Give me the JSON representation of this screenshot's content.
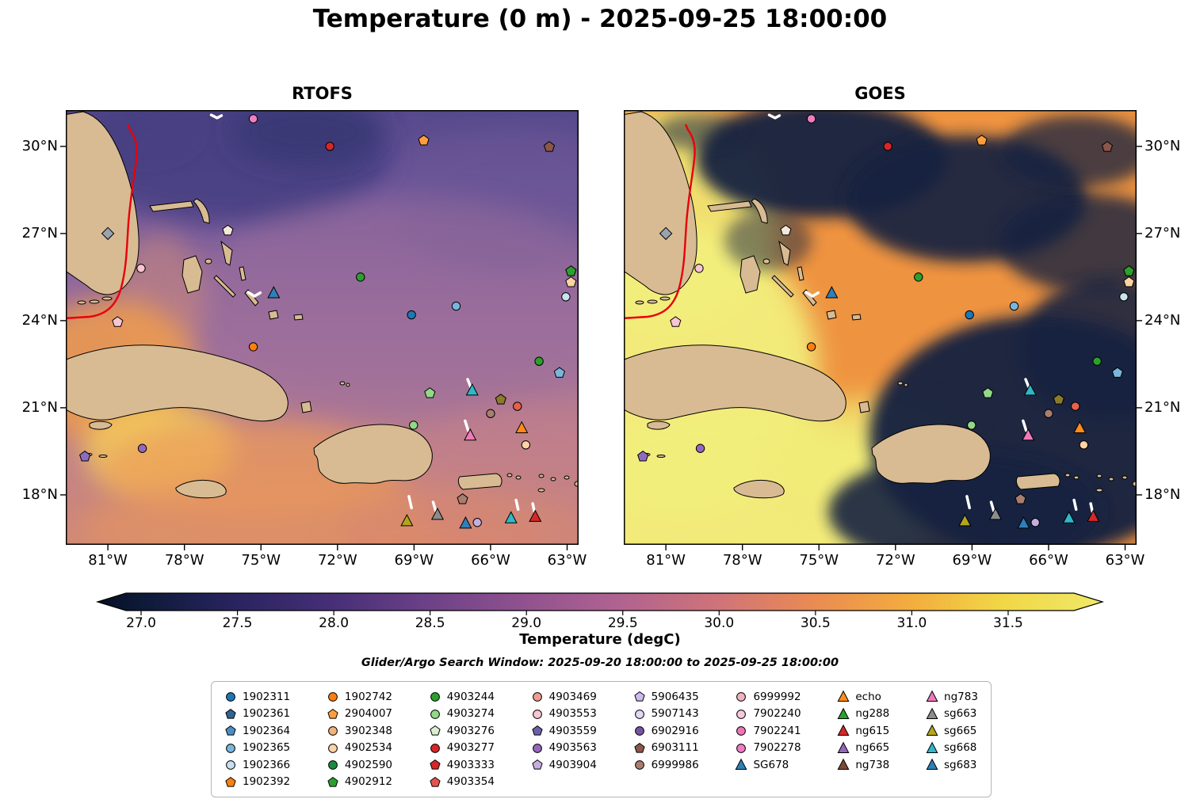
{
  "title": "Temperature (0 m) - 2025-09-25 18:00:00",
  "subtitle": "Glider/Argo Search Window: 2025-09-20 18:00:00 to 2025-09-25 18:00:00",
  "panels": [
    {
      "name": "RTOFS"
    },
    {
      "name": "GOES"
    }
  ],
  "axes": {
    "lon_ticks": [
      {
        "label": "81°W",
        "value": -81
      },
      {
        "label": "78°W",
        "value": -78
      },
      {
        "label": "75°W",
        "value": -75
      },
      {
        "label": "72°W",
        "value": -72
      },
      {
        "label": "69°W",
        "value": -69
      },
      {
        "label": "66°W",
        "value": -66
      },
      {
        "label": "63°W",
        "value": -63
      }
    ],
    "lat_ticks": [
      {
        "label": "30°N",
        "value": 30
      },
      {
        "label": "27°N",
        "value": 27
      },
      {
        "label": "24°N",
        "value": 24
      },
      {
        "label": "21°N",
        "value": 21
      },
      {
        "label": "18°N",
        "value": 18
      }
    ]
  },
  "colorbar": {
    "label": "Temperature (degC)",
    "ticks": [
      {
        "label": "27.0",
        "value": 27.0
      },
      {
        "label": "27.5",
        "value": 27.5
      },
      {
        "label": "28.0",
        "value": 28.0
      },
      {
        "label": "28.5",
        "value": 28.5
      },
      {
        "label": "29.0",
        "value": 29.0
      },
      {
        "label": "29.5",
        "value": 29.5
      },
      {
        "label": "30.0",
        "value": 30.0
      },
      {
        "label": "30.5",
        "value": 30.5
      },
      {
        "label": "31.0",
        "value": 31.0
      },
      {
        "label": "31.5",
        "value": 31.5
      }
    ],
    "stops": [
      [
        "0",
        "#060e24"
      ],
      [
        "0.044",
        "#0d1a38"
      ],
      [
        "0.14",
        "#2a2460"
      ],
      [
        "0.235",
        "#472f78"
      ],
      [
        "0.33",
        "#6d4187"
      ],
      [
        "0.43",
        "#92538f"
      ],
      [
        "0.52",
        "#b16390"
      ],
      [
        "0.62",
        "#cf7478"
      ],
      [
        "0.71",
        "#e98a54"
      ],
      [
        "0.81",
        "#f3ad3e"
      ],
      [
        "0.9",
        "#f1d747"
      ],
      [
        "1",
        "#f0e968"
      ]
    ]
  },
  "colors": {
    "land": "#d8bb93",
    "coast": "#000000",
    "contour": "#e8000b",
    "track": "#ffffff",
    "cloud_dark": "#15233f"
  },
  "legend": {
    "columns": [
      [
        {
          "label": "1902311",
          "shape": "circle",
          "color": "#1f77b4"
        },
        {
          "label": "1902361",
          "shape": "pentagon",
          "color": "#31648f"
        },
        {
          "label": "1902364",
          "shape": "pentagon",
          "color": "#4b8ec7"
        },
        {
          "label": "1902365",
          "shape": "circle",
          "color": "#79b6dd"
        },
        {
          "label": "1902366",
          "shape": "circle",
          "color": "#c8dff0"
        },
        {
          "label": "1902392",
          "shape": "pentagon",
          "color": "#ff7f0e"
        }
      ],
      [
        {
          "label": "1902742",
          "shape": "circle",
          "color": "#ff7f0e"
        },
        {
          "label": "2904007",
          "shape": "pentagon",
          "color": "#ff9e3d"
        },
        {
          "label": "3902348",
          "shape": "circle",
          "color": "#f2b279"
        },
        {
          "label": "4902534",
          "shape": "circle",
          "color": "#fbd3a4"
        },
        {
          "label": "4902590",
          "shape": "circle",
          "color": "#1e8a3e"
        },
        {
          "label": "4902912",
          "shape": "pentagon",
          "color": "#2ca02c"
        }
      ],
      [
        {
          "label": "4903244",
          "shape": "circle",
          "color": "#2ca02c"
        },
        {
          "label": "4903274",
          "shape": "circle",
          "color": "#93d788"
        },
        {
          "label": "4903276",
          "shape": "pentagon",
          "color": "#d9efce"
        },
        {
          "label": "4903277",
          "shape": "circle",
          "color": "#d62728"
        },
        {
          "label": "4903333",
          "shape": "pentagon",
          "color": "#d62728"
        },
        {
          "label": "4903354",
          "shape": "pentagon",
          "color": "#e4544e"
        }
      ],
      [
        {
          "label": "4903469",
          "shape": "circle",
          "color": "#f09b93"
        },
        {
          "label": "4903553",
          "shape": "circle",
          "color": "#f7c6d2"
        },
        {
          "label": "4903559",
          "shape": "pentagon",
          "color": "#6f5fa8"
        },
        {
          "label": "4903563",
          "shape": "circle",
          "color": "#9467bd"
        },
        {
          "label": "4903904",
          "shape": "pentagon",
          "color": "#c5aede"
        }
      ],
      [
        {
          "label": "5906435",
          "shape": "pentagon",
          "color": "#cdbaec"
        },
        {
          "label": "5907143",
          "shape": "circle",
          "color": "#e4d7f5"
        },
        {
          "label": "6902916",
          "shape": "circle",
          "color": "#7a52a3"
        },
        {
          "label": "6903111",
          "shape": "pentagon",
          "color": "#8c564b"
        },
        {
          "label": "6999986",
          "shape": "circle",
          "color": "#a97e6f"
        }
      ],
      [
        {
          "label": "6999992",
          "shape": "circle",
          "color": "#efb3c0"
        },
        {
          "label": "7902240",
          "shape": "circle",
          "color": "#f8c8dd"
        },
        {
          "label": "7902241",
          "shape": "circle",
          "color": "#f075b8"
        },
        {
          "label": "7902278",
          "shape": "circle",
          "color": "#ee7ec2"
        },
        {
          "label": "SG678",
          "shape": "triangle",
          "color": "#2f7fb8"
        }
      ],
      [
        {
          "label": "echo",
          "shape": "triangle",
          "color": "#ff8c1a"
        },
        {
          "label": "ng288",
          "shape": "triangle",
          "color": "#2ca02c"
        },
        {
          "label": "ng615",
          "shape": "triangle",
          "color": "#d62728"
        },
        {
          "label": "ng665",
          "shape": "triangle",
          "color": "#9467bd"
        },
        {
          "label": "ng738",
          "shape": "triangle",
          "color": "#7a4a37"
        }
      ],
      [
        {
          "label": "ng783",
          "shape": "triangle",
          "color": "#ef7ab8"
        },
        {
          "label": "sg663",
          "shape": "triangle",
          "color": "#8c8c8c"
        },
        {
          "label": "sg665",
          "shape": "triangle",
          "color": "#b3a61c"
        },
        {
          "label": "sg668",
          "shape": "triangle",
          "color": "#2fb8c9"
        },
        {
          "label": "sg683",
          "shape": "triangle",
          "color": "#2f7fb8"
        }
      ]
    ]
  },
  "chart_data": {
    "type": "heatmap",
    "title": "Temperature (0 m) - 2025-09-25 18:00:00",
    "panels": [
      "RTOFS",
      "GOES"
    ],
    "variable": "Temperature (degC)",
    "depth_m": 0,
    "valid_time": "2025-09-25 18:00:00",
    "search_window": [
      "2025-09-20 18:00:00",
      "2025-09-25 18:00:00"
    ],
    "extent": {
      "lon": [
        -82.65,
        -62.55
      ],
      "lat": [
        16.28,
        31.25
      ]
    },
    "lon_ticks": [
      -81,
      -78,
      -75,
      -72,
      -69,
      -66,
      -63
    ],
    "lat_ticks": [
      30,
      27,
      24,
      21,
      18
    ],
    "colorbar_range": [
      27.0,
      31.5
    ],
    "colorbar_extended": true,
    "markers": [
      {
        "shape": "circle",
        "color": "#ee7ec2",
        "lon": -75.3,
        "lat": 30.95
      },
      {
        "shape": "circle",
        "color": "#d62728",
        "lon": -72.3,
        "lat": 30.0
      },
      {
        "shape": "pentagon",
        "color": "#ff9e3d",
        "lon": -68.62,
        "lat": 30.2
      },
      {
        "shape": "pentagon",
        "color": "#8c564b",
        "lon": -63.7,
        "lat": 29.98
      },
      {
        "shape": "pentagon",
        "color": "#f3e8da",
        "lon": -76.3,
        "lat": 27.1
      },
      {
        "shape": "diamond",
        "color": "#9aa3ad",
        "lon": -81.0,
        "lat": 27.0
      },
      {
        "shape": "circle",
        "color": "#f7c6d2",
        "lon": -79.7,
        "lat": 25.8
      },
      {
        "shape": "circle",
        "color": "#2ca02c",
        "lon": -71.1,
        "lat": 25.5
      },
      {
        "shape": "pentagon",
        "color": "#2ca02c",
        "lon": -62.85,
        "lat": 25.7
      },
      {
        "shape": "pentagon",
        "color": "#fbd3a4",
        "lon": -62.85,
        "lat": 25.32
      },
      {
        "shape": "triangle",
        "color": "#2f7fb8",
        "lon": -74.5,
        "lat": 24.95
      },
      {
        "shape": "circle",
        "color": "#79b6dd",
        "lon": -67.35,
        "lat": 24.5
      },
      {
        "shape": "circle",
        "color": "#c8e4ee",
        "lon": -63.05,
        "lat": 24.82
      },
      {
        "shape": "circle",
        "color": "#1f77b4",
        "lon": -69.1,
        "lat": 24.2
      },
      {
        "shape": "pentagon",
        "color": "#f7c6d2",
        "lon": -80.62,
        "lat": 23.95
      },
      {
        "shape": "circle",
        "color": "#ff7f0e",
        "lon": -75.3,
        "lat": 23.1
      },
      {
        "shape": "circle",
        "color": "#2ca02c",
        "lon": -64.1,
        "lat": 22.6
      },
      {
        "shape": "pentagon",
        "color": "#79b6dd",
        "lon": -63.3,
        "lat": 22.2
      },
      {
        "shape": "triangle",
        "color": "#2fb8c9",
        "lon": -66.72,
        "lat": 21.6
      },
      {
        "shape": "pentagon",
        "color": "#93d788",
        "lon": -68.38,
        "lat": 21.5
      },
      {
        "shape": "pentagon",
        "color": "#8c7a2b",
        "lon": -65.6,
        "lat": 21.28
      },
      {
        "shape": "circle",
        "color": "#e8604c",
        "lon": -64.95,
        "lat": 21.05
      },
      {
        "shape": "circle",
        "color": "#a97e6f",
        "lon": -66.0,
        "lat": 20.8
      },
      {
        "shape": "circle",
        "color": "#93d788",
        "lon": -69.02,
        "lat": 20.4
      },
      {
        "shape": "triangle",
        "color": "#ff8c1a",
        "lon": -64.78,
        "lat": 20.3
      },
      {
        "shape": "triangle",
        "color": "#ef7ab8",
        "lon": -66.8,
        "lat": 20.05
      },
      {
        "shape": "circle",
        "color": "#fbd3a4",
        "lon": -64.62,
        "lat": 19.72
      },
      {
        "shape": "circle",
        "color": "#9467bd",
        "lon": -79.65,
        "lat": 19.6
      },
      {
        "shape": "pentagon",
        "color": "#8f6bbf",
        "lon": -81.9,
        "lat": 19.32
      },
      {
        "shape": "pentagon",
        "color": "#a97e6f",
        "lon": -67.1,
        "lat": 17.85
      },
      {
        "shape": "triangle",
        "color": "#b3a61c",
        "lon": -69.28,
        "lat": 17.1
      },
      {
        "shape": "triangle",
        "color": "#8c8c8c",
        "lon": -68.08,
        "lat": 17.32
      },
      {
        "shape": "triangle",
        "color": "#2f7fb8",
        "lon": -66.98,
        "lat": 17.02
      },
      {
        "shape": "circle",
        "color": "#c5aede",
        "lon": -66.52,
        "lat": 17.05
      },
      {
        "shape": "triangle",
        "color": "#2fb8c9",
        "lon": -65.2,
        "lat": 17.2
      },
      {
        "shape": "triangle",
        "color": "#d62728",
        "lon": -64.25,
        "lat": 17.25
      }
    ],
    "tracks": [
      [
        [
          -76.95,
          31.08
        ],
        [
          -76.72,
          30.98
        ],
        [
          -76.55,
          31.06
        ]
      ],
      [
        [
          -75.5,
          24.98
        ],
        [
          -75.26,
          24.84
        ],
        [
          -75.03,
          24.96
        ]
      ],
      [
        [
          -66.9,
          21.98
        ],
        [
          -66.78,
          21.72
        ]
      ],
      [
        [
          -67.0,
          20.55
        ],
        [
          -66.88,
          20.22
        ]
      ],
      [
        [
          -69.2,
          17.95
        ],
        [
          -69.1,
          17.55
        ]
      ],
      [
        [
          -68.25,
          17.75
        ],
        [
          -68.15,
          17.45
        ]
      ],
      [
        [
          -65.0,
          17.82
        ],
        [
          -64.92,
          17.5
        ]
      ],
      [
        [
          -64.35,
          17.7
        ],
        [
          -64.28,
          17.42
        ]
      ]
    ]
  }
}
